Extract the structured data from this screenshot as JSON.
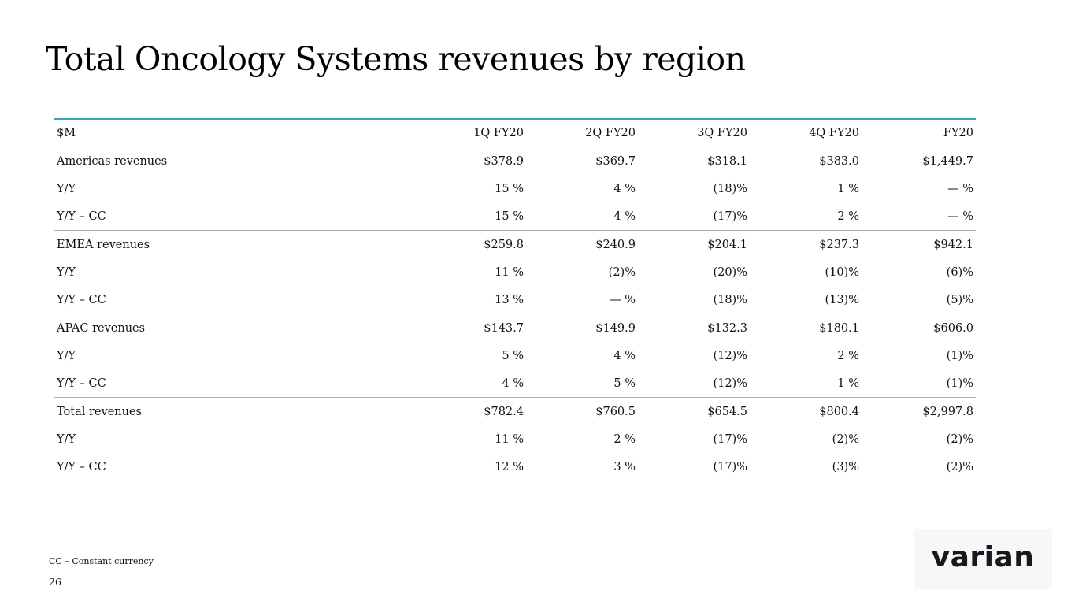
{
  "slide": {
    "title": "Total Oncology Systems revenues by region",
    "footnote": "CC – Constant currency",
    "page_number": "26",
    "logo_text": "varian"
  },
  "table": {
    "headers": [
      "$M",
      "1Q FY20",
      "2Q FY20",
      "3Q FY20",
      "4Q FY20",
      "FY20"
    ],
    "rows": [
      {
        "label": "Americas revenues",
        "values": [
          "$378.9",
          "$369.7",
          "$318.1",
          "$383.0",
          "$1,449.7"
        ]
      },
      {
        "label": "Y/Y",
        "values": [
          "15 %",
          "4 %",
          "(18)%",
          "1 %",
          "— %"
        ]
      },
      {
        "label": "Y/Y – CC",
        "values": [
          "15 %",
          "4 %",
          "(17)%",
          "2 %",
          "— %"
        ]
      },
      {
        "label": "EMEA revenues",
        "values": [
          "$259.8",
          "$240.9",
          "$204.1",
          "$237.3",
          "$942.1"
        ]
      },
      {
        "label": "Y/Y",
        "values": [
          "11 %",
          "(2)%",
          "(20)%",
          "(10)%",
          "(6)%"
        ]
      },
      {
        "label": "Y/Y – CC",
        "values": [
          "13 %",
          "— %",
          "(18)%",
          "(13)%",
          "(5)%"
        ]
      },
      {
        "label": "APAC revenues",
        "values": [
          "$143.7",
          "$149.9",
          "$132.3",
          "$180.1",
          "$606.0"
        ]
      },
      {
        "label": "Y/Y",
        "values": [
          "5 %",
          "4 %",
          "(12)%",
          "2 %",
          "(1)%"
        ]
      },
      {
        "label": "Y/Y – CC",
        "values": [
          "4 %",
          "5 %",
          "(12)%",
          "1 %",
          "(1)%"
        ]
      },
      {
        "label": "Total revenues",
        "values": [
          "$782.4",
          "$760.5",
          "$654.5",
          "$800.4",
          "$2,997.8"
        ]
      },
      {
        "label": "Y/Y",
        "values": [
          "11 %",
          "2 %",
          "(17)%",
          "(2)%",
          "(2)%"
        ]
      },
      {
        "label": "Y/Y – CC",
        "values": [
          "12 %",
          "3 %",
          "(17)%",
          "(3)%",
          "(2)%"
        ]
      }
    ]
  },
  "colors": {
    "table_top_rule": "#3aa3c0",
    "row_divider": "#9fb4c4",
    "logo": "#15191e"
  }
}
